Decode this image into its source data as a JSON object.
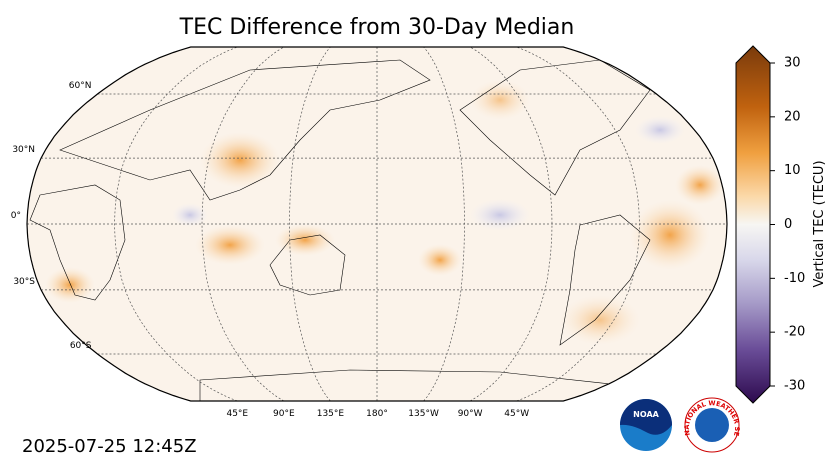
{
  "title": "TEC Difference from 30-Day Median",
  "timestamp": "2025-07-25 12:45Z",
  "map": {
    "lat_labels": [
      {
        "value": 60,
        "label": "60°N"
      },
      {
        "value": 30,
        "label": "30°N"
      },
      {
        "value": 0,
        "label": "0°"
      },
      {
        "value": -30,
        "label": "30°S"
      },
      {
        "value": -60,
        "label": "60°S"
      }
    ],
    "lon_labels": [
      {
        "value": 45,
        "label": "45°E"
      },
      {
        "value": 90,
        "label": "90°E"
      },
      {
        "value": 135,
        "label": "135°E"
      },
      {
        "value": 180,
        "label": "180°"
      },
      {
        "value": -135,
        "label": "135°W"
      },
      {
        "value": -90,
        "label": "90°W"
      },
      {
        "value": -45,
        "label": "45°W"
      }
    ]
  },
  "colorbar": {
    "label": "Vertical TEC (TECU)",
    "lim": [
      -30,
      30
    ],
    "ticks": [
      -30,
      -20,
      -10,
      0,
      10,
      20,
      30
    ]
  },
  "logos": {
    "noaa": "NOAA",
    "nws": "NATIONAL WEATHER SERVICE"
  }
}
